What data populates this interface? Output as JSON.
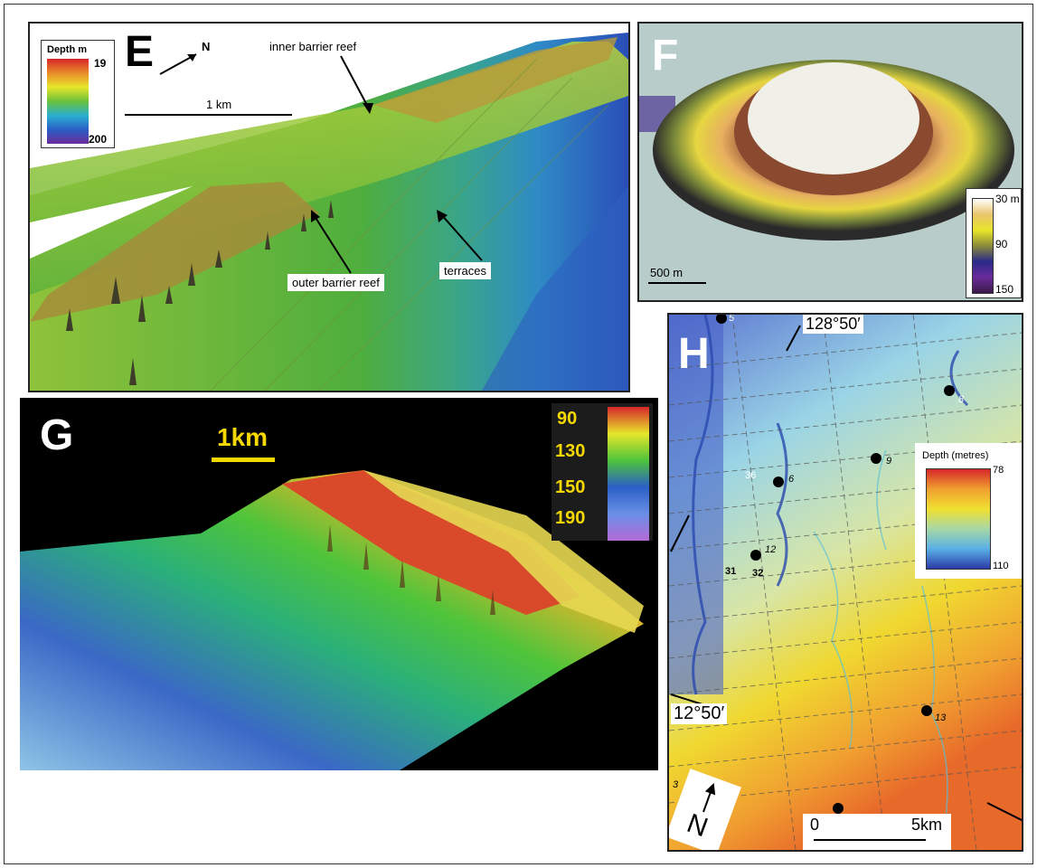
{
  "panels": {
    "E": {
      "letter": "E",
      "north": "N",
      "scale_label": "1 km",
      "legend": {
        "title": "Depth m",
        "top_value": "19",
        "bottom_value": "200"
      },
      "annotations": {
        "inner": "inner barrier reef",
        "outer": "outer barrier reef",
        "terraces": "terraces"
      }
    },
    "F": {
      "letter": "F",
      "scale_label": "500 m",
      "legend": {
        "top": "30 m",
        "mid": "90",
        "bottom": "150"
      }
    },
    "G": {
      "letter": "G",
      "scale_label": "1km",
      "legend_ticks": [
        "90",
        "130",
        "150",
        "190"
      ]
    },
    "H": {
      "letter": "H",
      "longitude_label": "128°50′",
      "latitude_label": "12°50′",
      "north": "N",
      "scale_start": "0",
      "scale_end": "5km",
      "legend": {
        "title": "Depth (metres)",
        "top": "78",
        "bottom": "110"
      },
      "site_labels": [
        "5",
        "8",
        "9",
        "6",
        "12",
        "13",
        "3",
        "36",
        "31",
        "32"
      ]
    }
  },
  "colors": {
    "accent_yellow": "#f5d800",
    "frame": "#222222"
  }
}
